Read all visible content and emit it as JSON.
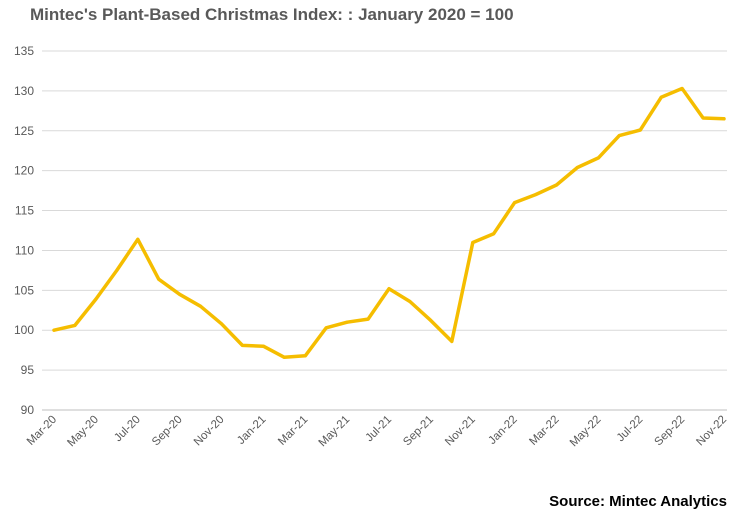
{
  "chart_data": {
    "type": "line",
    "title": "Mintec's Plant-Based Christmas Index: : January 2020 = 100",
    "xlabel": "",
    "ylabel": "",
    "ylim": [
      90,
      135
    ],
    "yticks": [
      90,
      95,
      100,
      105,
      110,
      115,
      120,
      125,
      130,
      135
    ],
    "grid": "horizontal",
    "categories": [
      "Mar-20",
      "Apr-20",
      "May-20",
      "Jun-20",
      "Jul-20",
      "Aug-20",
      "Sep-20",
      "Oct-20",
      "Nov-20",
      "Dec-20",
      "Jan-21",
      "Feb-21",
      "Mar-21",
      "Apr-21",
      "May-21",
      "Jun-21",
      "Jul-21",
      "Aug-21",
      "Sep-21",
      "Oct-21",
      "Nov-21",
      "Dec-21",
      "Jan-22",
      "Feb-22",
      "Mar-22",
      "Apr-22",
      "May-22",
      "Jun-22",
      "Jul-22",
      "Aug-22",
      "Sep-22",
      "Oct-22",
      "Nov-22"
    ],
    "xtick_labels": [
      "Mar-20",
      "May-20",
      "Jul-20",
      "Sep-20",
      "Nov-20",
      "Jan-21",
      "Mar-21",
      "May-21",
      "Jul-21",
      "Sep-21",
      "Nov-21",
      "Jan-22",
      "Mar-22",
      "May-22",
      "Jul-22",
      "Sep-22",
      "Nov-22"
    ],
    "series": [
      {
        "values": [
          100.0,
          100.6,
          103.9,
          107.5,
          111.4,
          106.4,
          104.5,
          103.0,
          100.8,
          98.1,
          98.0,
          96.6,
          96.8,
          100.3,
          101.0,
          101.4,
          105.2,
          103.6,
          101.2,
          98.6,
          111.0,
          112.1,
          116.0,
          117.0,
          118.2,
          120.4,
          121.6,
          124.4,
          125.1,
          129.2,
          130.3,
          126.6,
          126.5
        ],
        "color": "#F5BD00"
      }
    ]
  },
  "source": "Source: Mintec Analytics"
}
